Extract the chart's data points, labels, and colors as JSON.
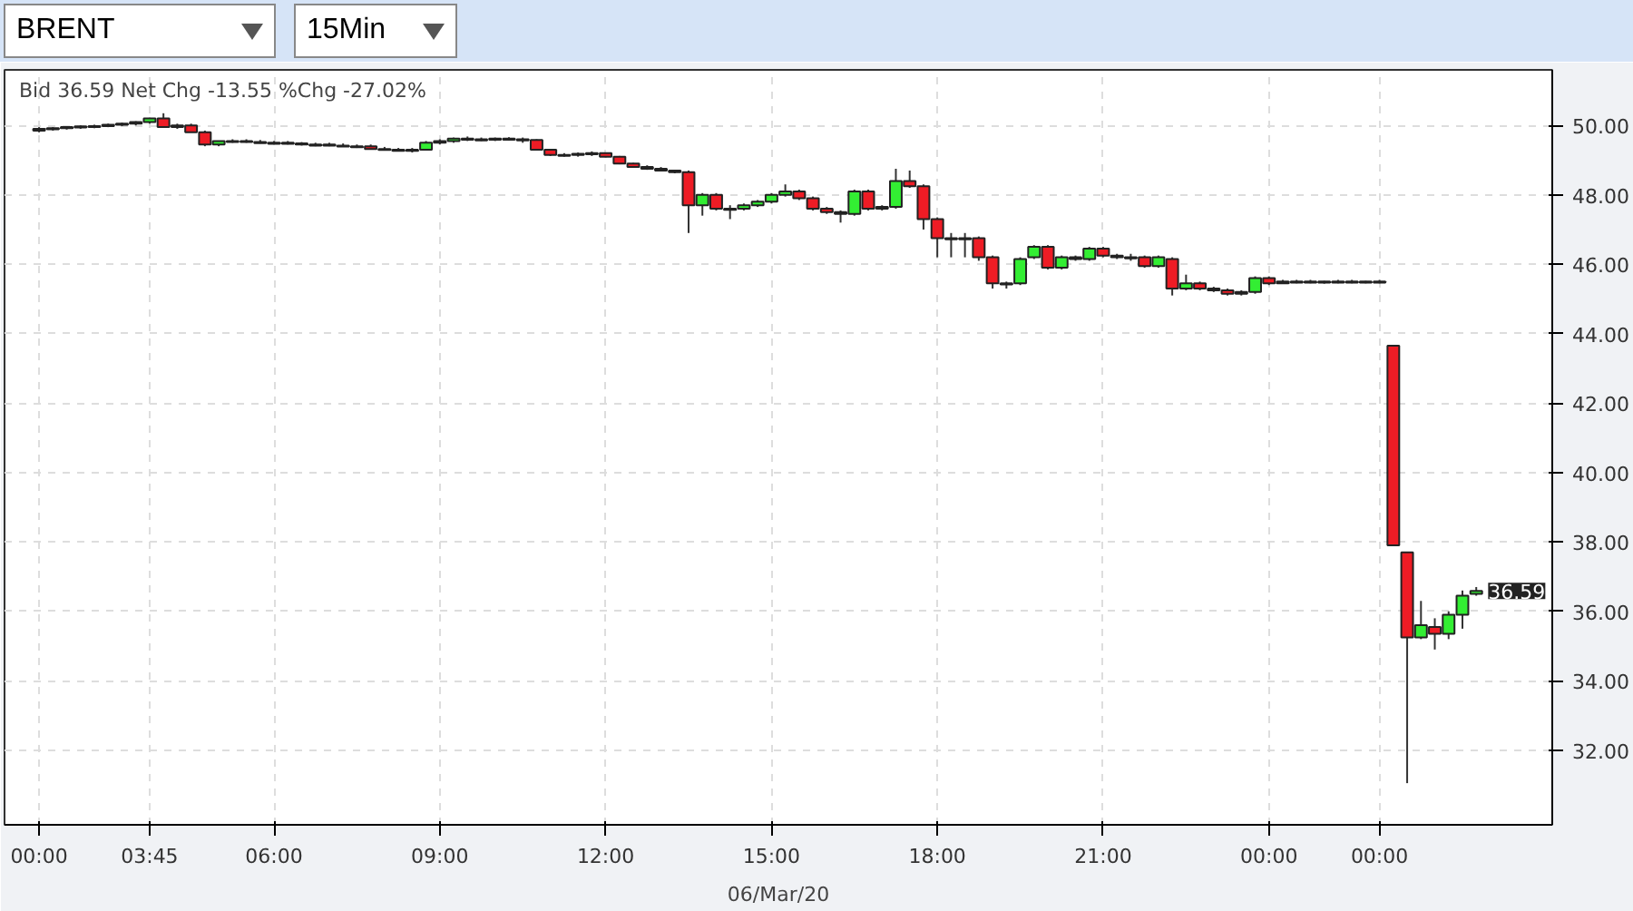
{
  "chart_data": {
    "type": "candlestick",
    "title": "BRENT",
    "subtitle": "15Min",
    "xlabel": "06/Mar/20",
    "annotations": [
      "Bid 36.59 Net Chg -13.55 %Chg -27.02%",
      "36.59"
    ],
    "categories": [
      "00:00",
      null,
      null,
      null,
      null,
      null,
      null,
      null,
      "03:45",
      null,
      null,
      null,
      null,
      null,
      null,
      null,
      null,
      "06:00",
      null,
      null,
      null,
      null,
      null,
      null,
      null,
      null,
      null,
      null,
      null,
      "09:00",
      null,
      null,
      null,
      null,
      null,
      null,
      null,
      null,
      null,
      null,
      null,
      "12:00",
      null,
      null,
      null,
      null,
      null,
      null,
      null,
      null,
      null,
      null,
      null,
      "15:00",
      null,
      null,
      null,
      null,
      null,
      null,
      null,
      null,
      null,
      null,
      null,
      "18:00",
      null,
      null,
      null,
      null,
      null,
      null,
      null,
      null,
      null,
      null,
      null,
      "21:00",
      null,
      null,
      null,
      null,
      null,
      null,
      null,
      null,
      null,
      null,
      null,
      "00:00",
      null,
      null,
      null,
      null,
      null,
      null,
      null,
      "00:00",
      null,
      null,
      null,
      null,
      null,
      null,
      null
    ],
    "ohlc": [
      [
        49.85,
        49.95,
        49.8,
        49.9
      ],
      [
        49.9,
        49.95,
        49.85,
        49.92
      ],
      [
        49.92,
        49.98,
        49.88,
        49.95
      ],
      [
        49.95,
        50.0,
        49.9,
        49.97
      ],
      [
        49.97,
        50.02,
        49.92,
        49.98
      ],
      [
        49.98,
        50.05,
        49.95,
        50.02
      ],
      [
        50.02,
        50.08,
        49.98,
        50.05
      ],
      [
        50.05,
        50.12,
        50.0,
        50.1
      ],
      [
        50.1,
        50.22,
        50.05,
        50.2
      ],
      [
        50.2,
        50.35,
        49.95,
        49.95
      ],
      [
        49.95,
        50.05,
        49.9,
        50.0
      ],
      [
        50.0,
        50.05,
        49.8,
        49.8
      ],
      [
        49.8,
        49.85,
        49.4,
        49.45
      ],
      [
        49.45,
        49.55,
        49.4,
        49.55
      ],
      [
        49.55,
        49.6,
        49.5,
        49.55
      ],
      [
        49.55,
        49.6,
        49.5,
        49.52
      ],
      [
        49.52,
        49.58,
        49.48,
        49.5
      ],
      [
        49.5,
        49.55,
        49.45,
        49.5
      ],
      [
        49.5,
        49.55,
        49.45,
        49.48
      ],
      [
        49.48,
        49.52,
        49.42,
        49.45
      ],
      [
        49.45,
        49.5,
        49.4,
        49.45
      ],
      [
        49.45,
        49.5,
        49.4,
        49.42
      ],
      [
        49.42,
        49.48,
        49.38,
        49.4
      ],
      [
        49.4,
        49.45,
        49.35,
        49.4
      ],
      [
        49.4,
        49.45,
        49.3,
        49.32
      ],
      [
        49.32,
        49.38,
        49.28,
        49.3
      ],
      [
        49.3,
        49.35,
        49.25,
        49.28
      ],
      [
        49.28,
        49.35,
        49.22,
        49.3
      ],
      [
        49.3,
        49.55,
        49.28,
        49.5
      ],
      [
        49.5,
        49.6,
        49.45,
        49.55
      ],
      [
        49.55,
        49.65,
        49.5,
        49.62
      ],
      [
        49.62,
        49.68,
        49.55,
        49.6
      ],
      [
        49.6,
        49.65,
        49.55,
        49.6
      ],
      [
        49.6,
        49.65,
        49.55,
        49.62
      ],
      [
        49.62,
        49.66,
        49.56,
        49.6
      ],
      [
        49.6,
        49.65,
        49.5,
        49.58
      ],
      [
        49.58,
        49.6,
        49.3,
        49.3
      ],
      [
        49.3,
        49.32,
        49.12,
        49.15
      ],
      [
        49.15,
        49.2,
        49.1,
        49.15
      ],
      [
        49.15,
        49.22,
        49.1,
        49.18
      ],
      [
        49.18,
        49.25,
        49.12,
        49.2
      ],
      [
        49.2,
        49.22,
        49.08,
        49.1
      ],
      [
        49.1,
        49.12,
        48.88,
        48.9
      ],
      [
        48.9,
        48.92,
        48.78,
        48.8
      ],
      [
        48.8,
        48.85,
        48.72,
        48.75
      ],
      [
        48.75,
        48.8,
        48.68,
        48.7
      ],
      [
        48.7,
        48.72,
        48.62,
        48.65
      ],
      [
        48.65,
        48.7,
        46.9,
        47.7
      ],
      [
        47.7,
        48.05,
        47.4,
        48.0
      ],
      [
        48.0,
        48.05,
        47.55,
        47.6
      ],
      [
        47.6,
        47.7,
        47.3,
        47.6
      ],
      [
        47.6,
        47.75,
        47.55,
        47.7
      ],
      [
        47.7,
        47.85,
        47.65,
        47.8
      ],
      [
        47.8,
        48.05,
        47.75,
        48.0
      ],
      [
        48.0,
        48.3,
        47.95,
        48.1
      ],
      [
        48.1,
        48.15,
        47.85,
        47.9
      ],
      [
        47.9,
        47.95,
        47.55,
        47.6
      ],
      [
        47.6,
        47.65,
        47.45,
        47.5
      ],
      [
        47.5,
        47.55,
        47.2,
        47.45
      ],
      [
        47.45,
        48.15,
        47.4,
        48.1
      ],
      [
        48.1,
        48.15,
        47.55,
        47.6
      ],
      [
        47.6,
        47.7,
        47.55,
        47.65
      ],
      [
        47.65,
        48.75,
        47.6,
        48.4
      ],
      [
        48.4,
        48.7,
        48.2,
        48.25
      ],
      [
        48.25,
        48.3,
        47.0,
        47.3
      ],
      [
        47.3,
        47.35,
        46.2,
        46.75
      ],
      [
        46.75,
        46.9,
        46.2,
        46.75
      ],
      [
        46.75,
        46.9,
        46.2,
        46.75
      ],
      [
        46.75,
        46.8,
        46.1,
        46.2
      ],
      [
        46.2,
        46.25,
        45.3,
        45.45
      ],
      [
        45.45,
        45.5,
        45.3,
        45.45
      ],
      [
        45.45,
        46.2,
        45.4,
        46.15
      ],
      [
        46.2,
        46.55,
        46.15,
        46.5
      ],
      [
        46.5,
        46.55,
        45.85,
        45.9
      ],
      [
        45.9,
        46.25,
        45.85,
        46.2
      ],
      [
        46.2,
        46.25,
        46.1,
        46.15
      ],
      [
        46.15,
        46.5,
        46.1,
        46.45
      ],
      [
        46.45,
        46.5,
        46.2,
        46.25
      ],
      [
        46.25,
        46.3,
        46.15,
        46.2
      ],
      [
        46.2,
        46.3,
        46.1,
        46.2
      ],
      [
        46.2,
        46.25,
        45.9,
        45.95
      ],
      [
        45.95,
        46.25,
        45.9,
        46.2
      ],
      [
        46.15,
        46.2,
        45.1,
        45.3
      ],
      [
        45.3,
        45.7,
        45.25,
        45.45
      ],
      [
        45.45,
        45.5,
        45.25,
        45.3
      ],
      [
        45.3,
        45.35,
        45.2,
        45.25
      ],
      [
        45.25,
        45.3,
        45.1,
        45.15
      ],
      [
        45.15,
        45.25,
        45.1,
        45.2
      ],
      [
        45.2,
        45.65,
        45.15,
        45.6
      ],
      [
        45.6,
        45.65,
        45.4,
        45.45
      ],
      [
        45.45,
        45.55,
        45.45,
        45.5
      ],
      [
        45.5,
        45.55,
        45.45,
        45.5
      ],
      [
        45.5,
        45.55,
        45.45,
        45.48
      ],
      [
        45.48,
        45.52,
        45.44,
        45.5
      ],
      [
        45.5,
        45.55,
        45.45,
        45.5
      ],
      [
        45.5,
        45.55,
        45.45,
        45.48
      ],
      [
        45.48,
        45.52,
        45.45,
        45.5
      ],
      [
        45.5,
        45.55,
        45.45,
        45.5
      ],
      [
        43.65,
        43.65,
        37.9,
        37.9
      ],
      [
        37.7,
        37.7,
        31.05,
        35.25
      ],
      [
        35.25,
        36.3,
        35.2,
        35.6
      ],
      [
        35.55,
        35.8,
        34.9,
        35.35
      ],
      [
        35.35,
        36.0,
        35.2,
        35.9
      ],
      [
        35.9,
        36.6,
        35.5,
        36.45
      ],
      [
        36.5,
        36.7,
        36.45,
        36.59
      ]
    ],
    "colors": [
      "#33ee33",
      "#33ee33",
      "#33ee33",
      "#33ee33",
      "#33ee33",
      "#33ee33",
      "#33ee33",
      "#33ee33",
      "#33ee33",
      "#ee1c25",
      "#33ee33",
      "#ee1c25",
      "#ee1c25",
      "#33ee33",
      "#33ee33",
      "#ee1c25",
      "#ee1c25",
      "#33ee33",
      "#ee1c25",
      "#ee1c25",
      "#33ee33",
      "#ee1c25",
      "#ee1c25",
      "#33ee33",
      "#ee1c25",
      "#ee1c25",
      "#ee1c25",
      "#33ee33",
      "#33ee33",
      "#33ee33",
      "#33ee33",
      "#ee1c25",
      "#33ee33",
      "#33ee33",
      "#ee1c25",
      "#ee1c25",
      "#ee1c25",
      "#ee1c25",
      "#33ee33",
      "#33ee33",
      "#33ee33",
      "#ee1c25",
      "#ee1c25",
      "#ee1c25",
      "#ee1c25",
      "#ee1c25",
      "#ee1c25",
      "#ee1c25",
      "#33ee33",
      "#ee1c25",
      "#33ee33",
      "#33ee33",
      "#33ee33",
      "#33ee33",
      "#33ee33",
      "#ee1c25",
      "#ee1c25",
      "#ee1c25",
      "#ee1c25",
      "#33ee33",
      "#ee1c25",
      "#33ee33",
      "#33ee33",
      "#ee1c25",
      "#ee1c25",
      "#ee1c25",
      "#33ee33",
      "#33ee33",
      "#ee1c25",
      "#ee1c25",
      "#33ee33",
      "#33ee33",
      "#33ee33",
      "#ee1c25",
      "#33ee33",
      "#ee1c25",
      "#33ee33",
      "#ee1c25",
      "#ee1c25",
      "#33ee33",
      "#ee1c25",
      "#33ee33",
      "#ee1c25",
      "#33ee33",
      "#ee1c25",
      "#ee1c25",
      "#ee1c25",
      "#33ee33",
      "#33ee33",
      "#ee1c25",
      "#33ee33",
      "#33ee33",
      "#ee1c25",
      "#33ee33",
      "#33ee33",
      "#ee1c25",
      "#33ee33",
      "#33ee33",
      "#ee1c25",
      "#ee1c25",
      "#33ee33",
      "#ee1c25",
      "#33ee33",
      "#33ee33",
      "#33ee33"
    ],
    "ylim": [
      29.85,
      51.6
    ],
    "yticks": [
      {
        "value": 32,
        "label": "32.00"
      },
      {
        "value": 34,
        "label": "34.00"
      },
      {
        "value": 36,
        "label": "36.00"
      },
      {
        "value": 38,
        "label": "38.00"
      },
      {
        "value": 40,
        "label": "40.00"
      },
      {
        "value": 42,
        "label": "42.00"
      },
      {
        "value": 44,
        "label": "44.00"
      },
      {
        "value": 46,
        "label": "46.00"
      },
      {
        "value": 48,
        "label": "48.00"
      },
      {
        "value": 50,
        "label": "50.00"
      }
    ],
    "grid": true
  }
}
